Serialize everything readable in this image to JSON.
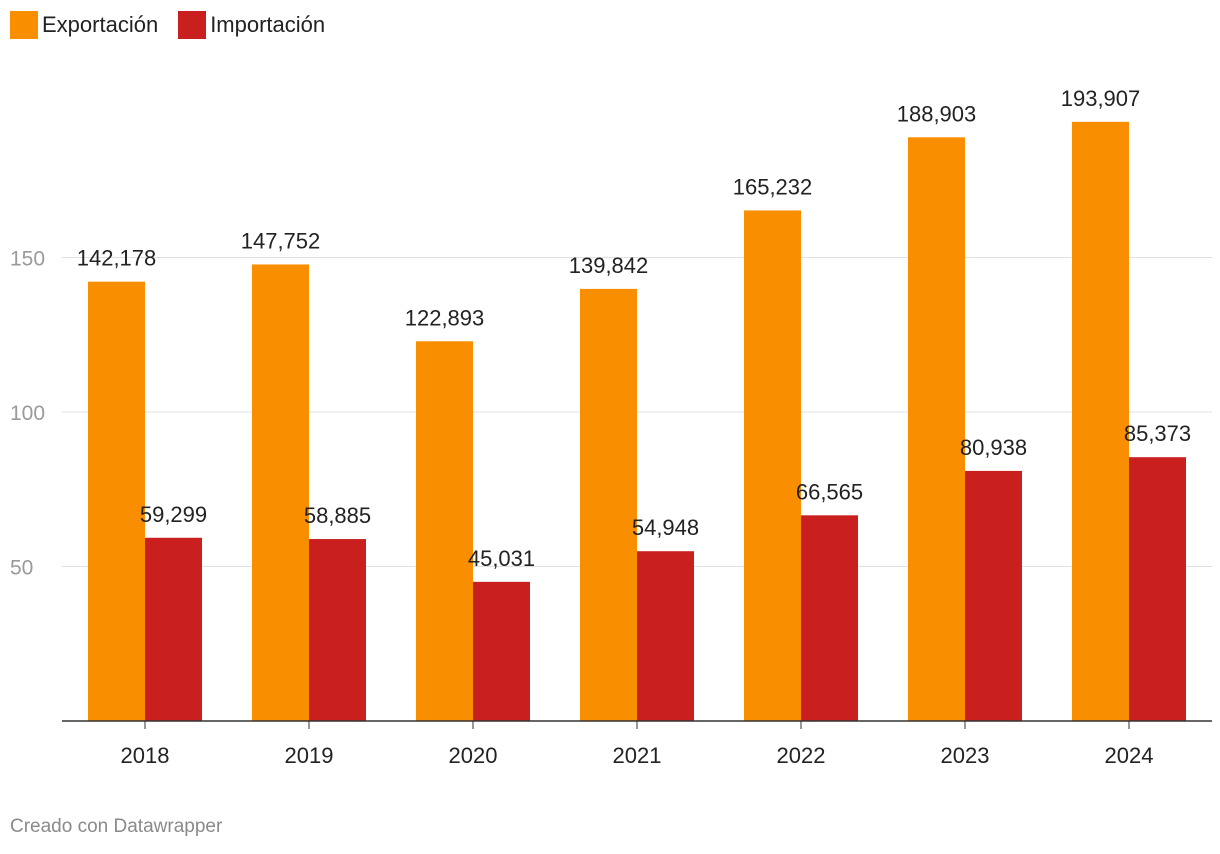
{
  "chart_data": {
    "type": "bar",
    "categories": [
      "2018",
      "2019",
      "2020",
      "2021",
      "2022",
      "2023",
      "2024"
    ],
    "series": [
      {
        "name": "Exportación",
        "color": "#f98f00",
        "values": [
          142178,
          147752,
          122893,
          139842,
          165232,
          188903,
          193907
        ],
        "labels": [
          "142,178",
          "147,752",
          "122,893",
          "139,842",
          "165,232",
          "188,903",
          "193,907"
        ]
      },
      {
        "name": "Importación",
        "color": "#c91f1f",
        "values": [
          59299,
          58885,
          45031,
          54948,
          66565,
          80938,
          85373
        ],
        "labels": [
          "59,299",
          "58,885",
          "45,031",
          "54,948",
          "66,565",
          "80,938",
          "85,373"
        ]
      }
    ],
    "y_ticks": [
      "50",
      "100",
      "150"
    ],
    "y_tick_values": [
      50000,
      100000,
      150000
    ],
    "ylim": [
      0,
      200000
    ],
    "grid": true,
    "legend_position": "top-left"
  },
  "footer": "Creado con Datawrapper"
}
